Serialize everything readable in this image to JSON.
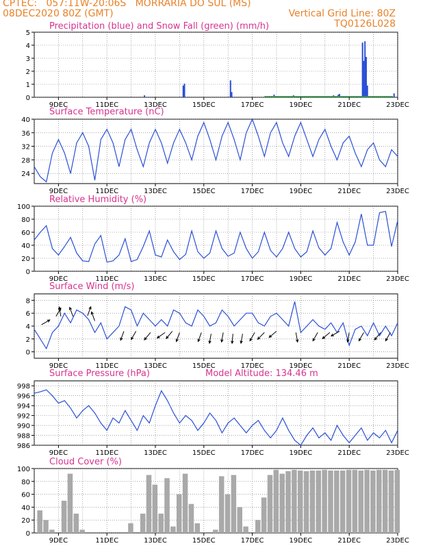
{
  "header": {
    "line1": "CPTEC:   057:11W-20:06S   MORRARIA DO SUL (MS)",
    "line2_left": "08DEC2020 80Z (GMT)",
    "line2_right": "Vertical Grid Line: 80Z",
    "code": "TQ0126L028"
  },
  "colors": {
    "header": "#e8822a",
    "title": "#d6338f",
    "line": "#2a4fd6",
    "snow": "#2ea043",
    "cloud": "#a9a9a9"
  },
  "x_axis": {
    "range": [
      8.0,
      23.0
    ],
    "ticks": [
      {
        "x": 9,
        "label": "9DEC"
      },
      {
        "x": 11,
        "label": "11DEC"
      },
      {
        "x": 13,
        "label": "13DEC"
      },
      {
        "x": 15,
        "label": "15DEC"
      },
      {
        "x": 17,
        "label": "17DEC"
      },
      {
        "x": 19,
        "label": "19DEC"
      },
      {
        "x": 21,
        "label": "21DEC"
      },
      {
        "x": 23,
        "label": "23DEC"
      }
    ]
  },
  "chart_data": [
    {
      "id": "precip",
      "type": "bar",
      "title": "Precipitation (blue) and Snow Fall (green) (mm/h)",
      "ylim": [
        0,
        5
      ],
      "yticks": [
        0,
        1,
        2,
        3,
        4,
        5
      ],
      "series": [
        {
          "name": "Precipitation",
          "color": "#2a4fd6",
          "x": [
            12.55,
            14.15,
            14.2,
            16.1,
            16.15,
            17.9,
            18.7,
            20.35,
            20.55,
            20.6,
            21.55,
            21.6,
            21.65,
            21.7,
            21.75,
            22.85
          ],
          "y": [
            0.15,
            0.9,
            1.05,
            1.3,
            0.4,
            0.2,
            0.15,
            0.15,
            0.2,
            0.25,
            4.2,
            2.8,
            4.3,
            3.1,
            0.9,
            0.3
          ]
        },
        {
          "name": "Snow Fall",
          "color": "#2ea043",
          "x": [],
          "y": []
        }
      ]
    },
    {
      "id": "temperature",
      "type": "line",
      "title": "Surface Temperature (nC)",
      "ylim": [
        21,
        40
      ],
      "yticks": [
        24,
        28,
        32,
        36,
        40
      ],
      "x": [
        8.0,
        8.25,
        8.5,
        8.75,
        9.0,
        9.25,
        9.5,
        9.75,
        10.0,
        10.25,
        10.5,
        10.75,
        11.0,
        11.25,
        11.5,
        11.75,
        12.0,
        12.25,
        12.5,
        12.75,
        13.0,
        13.25,
        13.5,
        13.75,
        14.0,
        14.25,
        14.5,
        14.75,
        15.0,
        15.25,
        15.5,
        15.75,
        16.0,
        16.25,
        16.5,
        16.75,
        17.0,
        17.25,
        17.5,
        17.75,
        18.0,
        18.25,
        18.5,
        18.75,
        19.0,
        19.25,
        19.5,
        19.75,
        20.0,
        20.25,
        20.5,
        20.75,
        21.0,
        21.25,
        21.5,
        21.75,
        22.0,
        22.25,
        22.5,
        22.75,
        23.0
      ],
      "y": [
        26,
        23,
        21.5,
        30,
        34,
        30,
        24,
        33,
        36,
        32,
        22,
        34,
        37,
        33,
        26,
        34,
        37,
        31,
        26,
        33,
        37,
        33,
        27,
        33,
        37,
        33,
        28,
        35,
        39,
        34,
        28,
        35,
        39,
        34,
        28,
        36,
        40,
        35,
        29,
        36,
        39,
        33,
        29,
        35,
        39,
        34,
        29,
        34,
        37,
        32,
        28,
        33,
        35,
        30,
        26,
        31,
        33,
        28,
        26,
        31,
        29
      ]
    },
    {
      "id": "humidity",
      "type": "line",
      "title": "Relative Humidity (%)",
      "ylim": [
        0,
        100
      ],
      "yticks": [
        0,
        20,
        40,
        60,
        80,
        100
      ],
      "x": [
        8.0,
        8.25,
        8.5,
        8.75,
        9.0,
        9.25,
        9.5,
        9.75,
        10.0,
        10.25,
        10.5,
        10.75,
        11.0,
        11.25,
        11.5,
        11.75,
        12.0,
        12.25,
        12.5,
        12.75,
        13.0,
        13.25,
        13.5,
        13.75,
        14.0,
        14.25,
        14.5,
        14.75,
        15.0,
        15.25,
        15.5,
        15.75,
        16.0,
        16.25,
        16.5,
        16.75,
        17.0,
        17.25,
        17.5,
        17.75,
        18.0,
        18.25,
        18.5,
        18.75,
        19.0,
        19.25,
        19.5,
        19.75,
        20.0,
        20.25,
        20.5,
        20.75,
        21.0,
        21.25,
        21.5,
        21.75,
        22.0,
        22.25,
        22.5,
        22.75,
        23.0
      ],
      "y": [
        48,
        60,
        70,
        35,
        25,
        38,
        52,
        28,
        16,
        15,
        42,
        55,
        14,
        16,
        25,
        50,
        15,
        18,
        38,
        62,
        25,
        22,
        48,
        30,
        18,
        26,
        62,
        30,
        20,
        28,
        62,
        35,
        23,
        28,
        60,
        35,
        20,
        30,
        60,
        32,
        22,
        35,
        60,
        35,
        22,
        30,
        62,
        36,
        25,
        35,
        75,
        45,
        25,
        45,
        88,
        40,
        40,
        90,
        92,
        38,
        78
      ]
    },
    {
      "id": "wind",
      "type": "line",
      "title": "Surface Wind (m/s)",
      "ylim": [
        -1,
        9
      ],
      "yticks": [
        0,
        2,
        4,
        6,
        8
      ],
      "x": [
        8.0,
        8.25,
        8.5,
        8.75,
        9.0,
        9.25,
        9.5,
        9.75,
        10.0,
        10.25,
        10.5,
        10.75,
        11.0,
        11.25,
        11.5,
        11.75,
        12.0,
        12.25,
        12.5,
        12.75,
        13.0,
        13.25,
        13.5,
        13.75,
        14.0,
        14.25,
        14.5,
        14.75,
        15.0,
        15.25,
        15.5,
        15.75,
        16.0,
        16.25,
        16.5,
        16.75,
        17.0,
        17.25,
        17.5,
        17.75,
        18.0,
        18.25,
        18.5,
        18.75,
        19.0,
        19.25,
        19.5,
        19.75,
        20.0,
        20.25,
        20.5,
        20.75,
        21.0,
        21.25,
        21.5,
        21.75,
        22.0,
        22.25,
        22.5,
        22.75,
        23.0
      ],
      "y": [
        3.5,
        2,
        0.5,
        3,
        4,
        6,
        4.5,
        6.5,
        6,
        5,
        3,
        4.5,
        2,
        3,
        4,
        7,
        6.5,
        4,
        6,
        5,
        4,
        5,
        4,
        6.5,
        6,
        4.5,
        4,
        6.5,
        5.5,
        4,
        4.5,
        6.5,
        5.5,
        4,
        5,
        6,
        6,
        4.5,
        4,
        5.5,
        6,
        5,
        4,
        7.8,
        3,
        4,
        5,
        4,
        3.5,
        4.5,
        3,
        4.5,
        1,
        3.5,
        4,
        2.5,
        4.5,
        2.5,
        4,
        2.5,
        4.5
      ]
    },
    {
      "id": "pressure",
      "type": "line",
      "title": "Surface Pressure (hPa)",
      "annotation": "Model Altitude: 134.46 m",
      "ylim": [
        986,
        999
      ],
      "yticks": [
        986,
        988,
        990,
        992,
        994,
        996,
        998
      ],
      "x": [
        8.0,
        8.25,
        8.5,
        8.75,
        9.0,
        9.25,
        9.5,
        9.75,
        10.0,
        10.25,
        10.5,
        10.75,
        11.0,
        11.25,
        11.5,
        11.75,
        12.0,
        12.25,
        12.5,
        12.75,
        13.0,
        13.25,
        13.5,
        13.75,
        14.0,
        14.25,
        14.5,
        14.75,
        15.0,
        15.25,
        15.5,
        15.75,
        16.0,
        16.25,
        16.5,
        16.75,
        17.0,
        17.25,
        17.5,
        17.75,
        18.0,
        18.25,
        18.5,
        18.75,
        19.0,
        19.25,
        19.5,
        19.75,
        20.0,
        20.25,
        20.5,
        20.75,
        21.0,
        21.25,
        21.5,
        21.75,
        22.0,
        22.25,
        22.5,
        22.75,
        23.0
      ],
      "y": [
        996.5,
        996.8,
        997.2,
        996,
        994.5,
        995,
        993.5,
        991.5,
        993,
        994,
        992.5,
        990.5,
        989,
        991.5,
        990.5,
        993,
        991,
        989,
        992,
        990.5,
        994,
        997,
        995,
        992.5,
        990.5,
        992,
        991,
        989,
        990.5,
        992.5,
        991,
        988.5,
        990.5,
        991.5,
        990,
        988.5,
        990,
        991,
        989,
        987.5,
        989,
        991.5,
        989,
        987,
        986,
        988,
        989.5,
        987.5,
        988.5,
        987,
        990,
        988,
        986.5,
        988,
        989.5,
        987,
        988.5,
        987.5,
        989,
        986.5,
        989
      ]
    },
    {
      "id": "cloud",
      "type": "bar",
      "title": "Cloud Cover (%)",
      "ylim": [
        0,
        100
      ],
      "yticks": [
        0,
        20,
        40,
        60,
        80,
        100
      ],
      "x": [
        8.0,
        8.25,
        8.5,
        8.75,
        9.0,
        9.25,
        9.5,
        9.75,
        10.0,
        10.25,
        10.5,
        10.75,
        11.0,
        11.25,
        11.5,
        11.75,
        12.0,
        12.25,
        12.5,
        12.75,
        13.0,
        13.25,
        13.5,
        13.75,
        14.0,
        14.25,
        14.5,
        14.75,
        15.0,
        15.25,
        15.5,
        15.75,
        16.0,
        16.25,
        16.5,
        16.75,
        17.0,
        17.25,
        17.5,
        17.75,
        18.0,
        18.25,
        18.5,
        18.75,
        19.0,
        19.25,
        19.5,
        19.75,
        20.0,
        20.25,
        20.5,
        20.75,
        21.0,
        21.25,
        21.5,
        21.75,
        22.0,
        22.25,
        22.5,
        22.75,
        23.0
      ],
      "y": [
        0,
        35,
        20,
        5,
        0,
        50,
        92,
        30,
        5,
        0,
        0,
        0,
        0,
        0,
        0,
        0,
        15,
        0,
        30,
        90,
        75,
        30,
        85,
        10,
        60,
        92,
        45,
        15,
        0,
        0,
        5,
        88,
        60,
        90,
        40,
        10,
        0,
        20,
        55,
        90,
        98,
        92,
        96,
        98,
        97,
        96,
        97,
        97,
        98,
        97,
        97,
        97,
        98,
        98,
        97,
        98,
        97,
        98,
        98,
        97,
        98
      ]
    }
  ]
}
